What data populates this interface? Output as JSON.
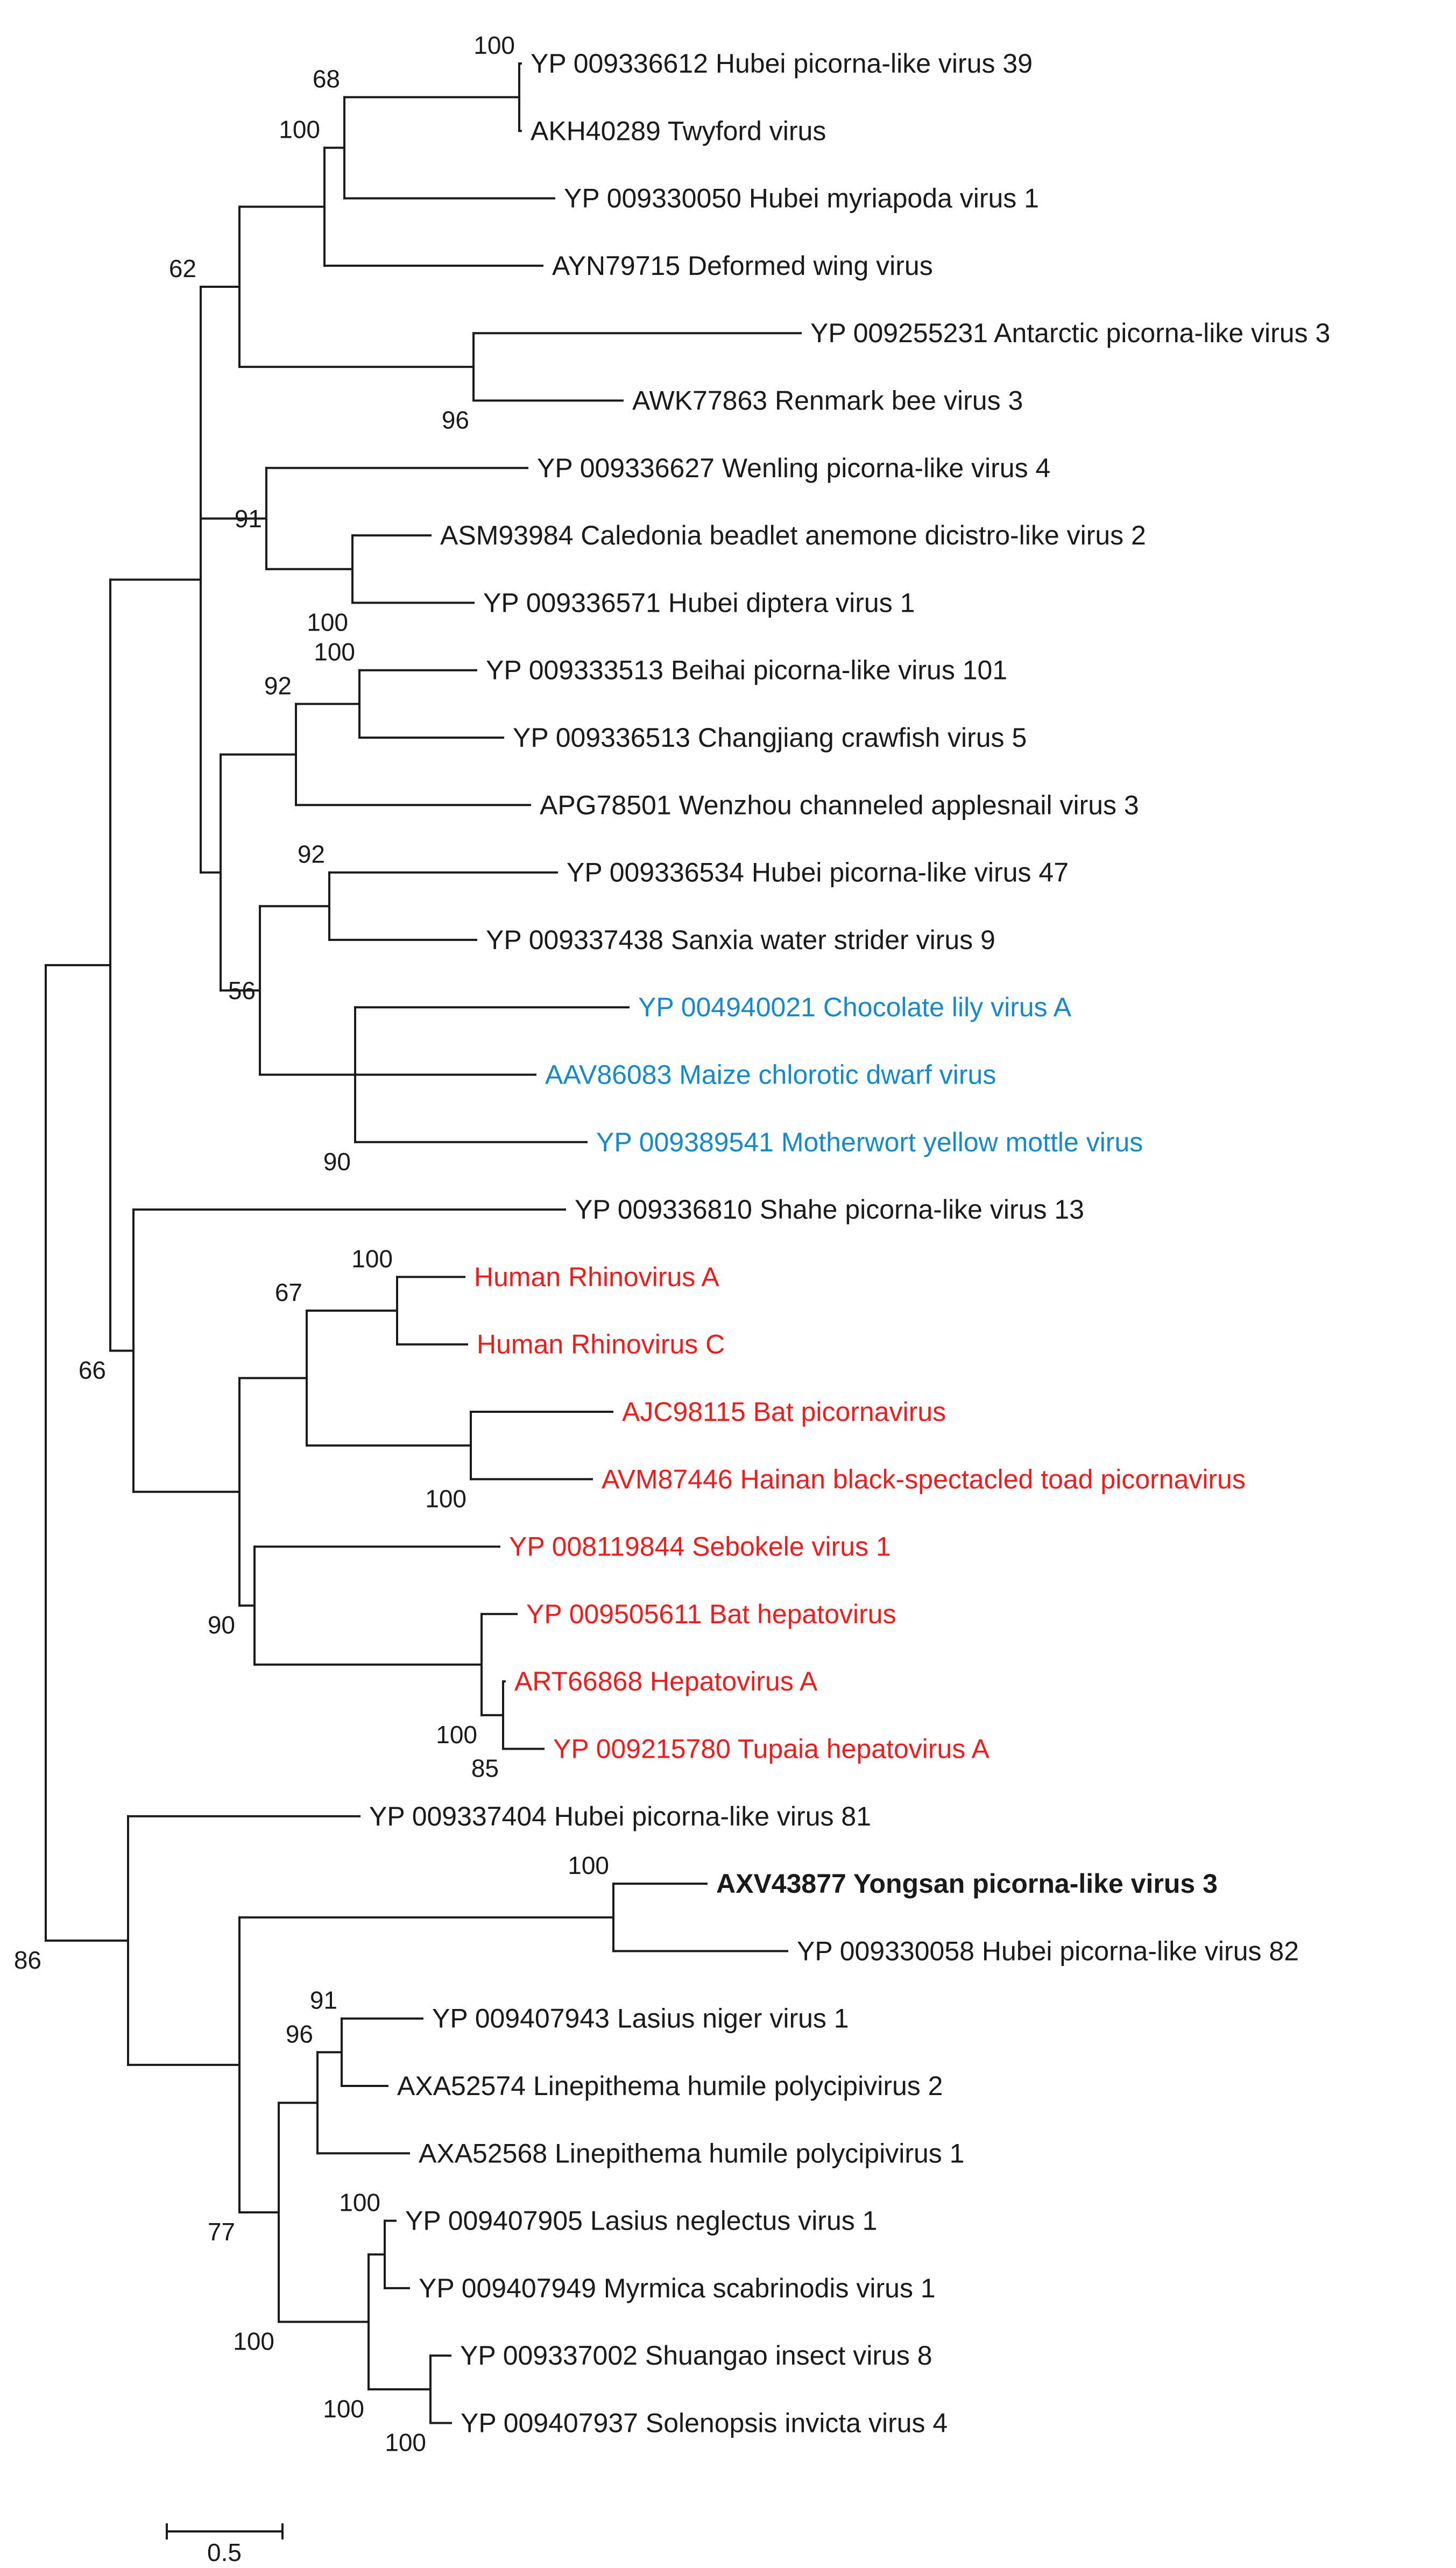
{
  "colors": {
    "default": "#1a1a1a",
    "plant": "#1589c9",
    "vertebrate": "#ee1c1c"
  },
  "taxa": [
    {
      "id": "t1",
      "label": "YP 009336612 Hubei picorna-like virus 39",
      "group": "default"
    },
    {
      "id": "t2",
      "label": "AKH40289 Twyford virus",
      "group": "default"
    },
    {
      "id": "t3",
      "label": "YP 009330050 Hubei myriapoda virus 1",
      "group": "default"
    },
    {
      "id": "t4",
      "label": "AYN79715 Deformed wing virus",
      "group": "default"
    },
    {
      "id": "t5",
      "label": "YP 009255231 Antarctic picorna-like virus 3",
      "group": "default"
    },
    {
      "id": "t6",
      "label": "AWK77863 Renmark bee virus 3",
      "group": "default"
    },
    {
      "id": "t7",
      "label": "YP 009336627 Wenling picorna-like virus 4",
      "group": "default"
    },
    {
      "id": "t8",
      "label": "ASM93984 Caledonia beadlet anemone dicistro-like virus 2",
      "group": "default"
    },
    {
      "id": "t9",
      "label": "YP 009336571 Hubei diptera virus 1",
      "group": "default"
    },
    {
      "id": "t10",
      "label": "YP 009333513 Beihai picorna-like virus 101",
      "group": "default"
    },
    {
      "id": "t11",
      "label": "YP 009336513 Changjiang crawfish virus 5",
      "group": "default"
    },
    {
      "id": "t12",
      "label": "APG78501 Wenzhou channeled applesnail virus 3",
      "group": "default"
    },
    {
      "id": "t13",
      "label": "YP 009336534 Hubei picorna-like virus 47",
      "group": "default"
    },
    {
      "id": "t14",
      "label": "YP 009337438 Sanxia water strider virus 9",
      "group": "default"
    },
    {
      "id": "t15",
      "label": "YP 004940021 Chocolate lily virus A",
      "group": "plant"
    },
    {
      "id": "t16",
      "label": "AAV86083 Maize chlorotic dwarf virus",
      "group": "plant"
    },
    {
      "id": "t17",
      "label": "YP 009389541 Motherwort yellow mottle virus",
      "group": "plant"
    },
    {
      "id": "t18",
      "label": "YP 009336810 Shahe picorna-like virus 13",
      "group": "default"
    },
    {
      "id": "t19",
      "label": "Human Rhinovirus A",
      "group": "vertebrate"
    },
    {
      "id": "t20",
      "label": "Human Rhinovirus C",
      "group": "vertebrate"
    },
    {
      "id": "t21",
      "label": "AJC98115 Bat picornavirus",
      "group": "vertebrate"
    },
    {
      "id": "t22",
      "label": "AVM87446 Hainan black-spectacled toad picornavirus",
      "group": "vertebrate"
    },
    {
      "id": "t23",
      "label": "YP 008119844 Sebokele virus 1",
      "group": "vertebrate"
    },
    {
      "id": "t24",
      "label": "YP 009505611 Bat hepatovirus",
      "group": "vertebrate"
    },
    {
      "id": "t25",
      "label": "ART66868 Hepatovirus A",
      "group": "vertebrate"
    },
    {
      "id": "t26",
      "label": "YP 009215780 Tupaia hepatovirus A",
      "group": "vertebrate"
    },
    {
      "id": "t27",
      "label": "YP 009337404 Hubei picorna-like virus 81",
      "group": "default"
    },
    {
      "id": "t28",
      "label": "AXV43877 Yongsan picorna-like virus 3",
      "group": "default",
      "bold": true
    },
    {
      "id": "t29",
      "label": "YP 009330058 Hubei picorna-like virus 82",
      "group": "default"
    },
    {
      "id": "t30",
      "label": "YP 009407943 Lasius niger virus 1",
      "group": "default"
    },
    {
      "id": "t31",
      "label": "AXA52574 Linepithema humile polycipivirus 2",
      "group": "default"
    },
    {
      "id": "t32",
      "label": "AXA52568 Linepithema humile polycipivirus 1",
      "group": "default"
    },
    {
      "id": "t33",
      "label": "YP 009407905 Lasius neglectus virus 1",
      "group": "default"
    },
    {
      "id": "t34",
      "label": "YP 009407949 Myrmica scabrinodis virus 1",
      "group": "default"
    },
    {
      "id": "t35",
      "label": "YP 009337002 Shuangao insect virus 8",
      "group": "default"
    },
    {
      "id": "t36",
      "label": "YP 009407937 Solenopsis invicta virus 4",
      "group": "default"
    }
  ],
  "nodes": [
    {
      "id": "n1",
      "children": [
        "t1",
        "t2"
      ],
      "support": "100"
    },
    {
      "id": "n2",
      "children": [
        "n1",
        "t3"
      ],
      "support": "68"
    },
    {
      "id": "n3",
      "children": [
        "n2",
        "t4"
      ],
      "support": "100"
    },
    {
      "id": "n4",
      "children": [
        "t5",
        "t6"
      ],
      "support": "96"
    },
    {
      "id": "n5",
      "children": [
        "n3",
        "n4"
      ],
      "support": ""
    },
    {
      "id": "n6",
      "children": [
        "t8",
        "t9"
      ],
      "support": "100"
    },
    {
      "id": "n7",
      "children": [
        "t7",
        "n6"
      ],
      "support": "91"
    },
    {
      "id": "n8",
      "children": [
        "t10",
        "t11"
      ],
      "support": "100"
    },
    {
      "id": "n9",
      "children": [
        "n8",
        "t12"
      ],
      "support": "92"
    },
    {
      "id": "n10",
      "children": [
        "t13",
        "t14"
      ],
      "support": "92"
    },
    {
      "id": "n11",
      "children": [
        "t15",
        "t16",
        "t17"
      ],
      "support": "90"
    },
    {
      "id": "n12",
      "children": [
        "n10",
        "n11"
      ],
      "support": "56"
    },
    {
      "id": "n13",
      "children": [
        "n9",
        "n12"
      ],
      "support": ""
    },
    {
      "id": "n14",
      "children": [
        "n5",
        "n7",
        "n13"
      ],
      "support": "62"
    },
    {
      "id": "n15",
      "children": [
        "t19",
        "t20"
      ],
      "support": "100"
    },
    {
      "id": "n16",
      "children": [
        "t21",
        "t22"
      ],
      "support": "100"
    },
    {
      "id": "n17",
      "children": [
        "n15",
        "n16"
      ],
      "support": "67"
    },
    {
      "id": "n18",
      "children": [
        "t25",
        "t26"
      ],
      "support": "85"
    },
    {
      "id": "n19",
      "children": [
        "t24",
        "n18"
      ],
      "support": "100"
    },
    {
      "id": "n20",
      "children": [
        "t23",
        "n19"
      ],
      "support": ""
    },
    {
      "id": "n21",
      "children": [
        "n17",
        "n20"
      ],
      "support": "90"
    },
    {
      "id": "n22",
      "children": [
        "t18",
        "n21"
      ],
      "support": ""
    },
    {
      "id": "n23",
      "children": [
        "n14",
        "n22"
      ],
      "support": "66"
    },
    {
      "id": "n24",
      "children": [
        "t28",
        "t29"
      ],
      "support": "100"
    },
    {
      "id": "n25",
      "children": [
        "t30",
        "t31"
      ],
      "support": "91"
    },
    {
      "id": "n26",
      "children": [
        "n25",
        "t32"
      ],
      "support": "96"
    },
    {
      "id": "n27",
      "children": [
        "t33",
        "t34"
      ],
      "support": "100"
    },
    {
      "id": "n28",
      "children": [
        "t35",
        "t36"
      ],
      "support": "100"
    },
    {
      "id": "n29",
      "children": [
        "n27",
        "n28"
      ],
      "support": "100"
    },
    {
      "id": "n30",
      "children": [
        "n26",
        "n29"
      ],
      "support": "100"
    },
    {
      "id": "n31",
      "children": [
        "n24",
        "n30"
      ],
      "support": "77"
    },
    {
      "id": "n32",
      "children": [
        "t27",
        "n31"
      ],
      "support": ""
    },
    {
      "id": "n33",
      "children": [
        "n23",
        "n32"
      ],
      "support": "86"
    }
  ],
  "root": "n33",
  "scale_bar": {
    "label": "0.5"
  }
}
